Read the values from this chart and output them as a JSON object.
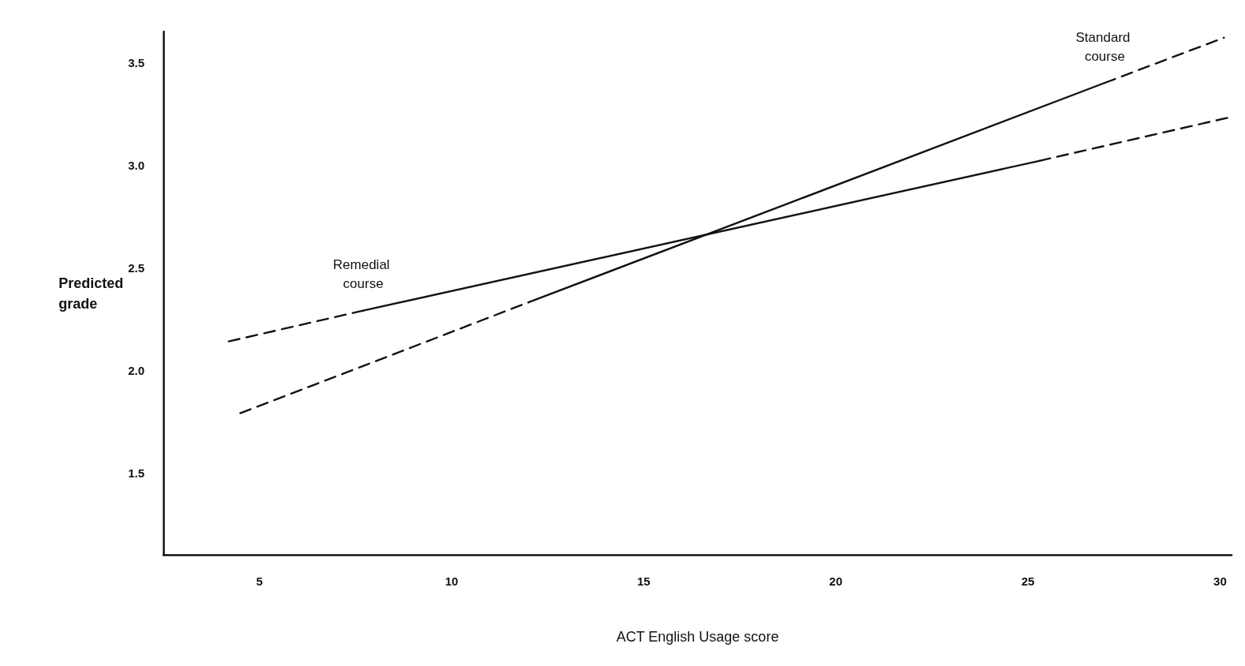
{
  "chart_data": {
    "type": "line",
    "xlabel": "ACT English Usage score",
    "ylabel": "Predicted\ngrade",
    "xlim": [
      2.5,
      30.3
    ],
    "xticks": [
      5,
      10,
      15,
      20,
      25,
      30
    ],
    "ylim": [
      1.1,
      3.65
    ],
    "yticks": [
      1.5,
      {
        "value": 2,
        "label": "2.0"
      },
      2.5,
      {
        "value": 3,
        "label": "3.0"
      },
      3.5
    ],
    "grid": false,
    "marker": "none",
    "series": [
      {
        "name": "Remedial course",
        "color": "#111111",
        "line_style": "solid",
        "x": [
          7.7,
          25.3
        ],
        "values": [
          2.29,
          3.02
        ]
      },
      {
        "name": "Standard course",
        "color": "#111111",
        "line_style": "solid",
        "x": [
          12,
          27
        ],
        "values": [
          2.33,
          3.4
        ]
      },
      {
        "color": "#111111",
        "line_style": "dashed",
        "x": [
          4.2,
          7.7
        ],
        "values": [
          2.14,
          2.29
        ]
      },
      {
        "color": "#111111",
        "line_style": "dashed",
        "x": [
          25.3,
          30.2
        ],
        "values": [
          3.02,
          3.23
        ]
      },
      {
        "color": "#111111",
        "line_style": "dashed",
        "x": [
          4.5,
          12
        ],
        "values": [
          1.79,
          2.33
        ]
      },
      {
        "color": "#111111",
        "line_style": "dashed",
        "x": [
          27,
          30.1
        ],
        "values": [
          3.4,
          3.62
        ]
      }
    ]
  }
}
